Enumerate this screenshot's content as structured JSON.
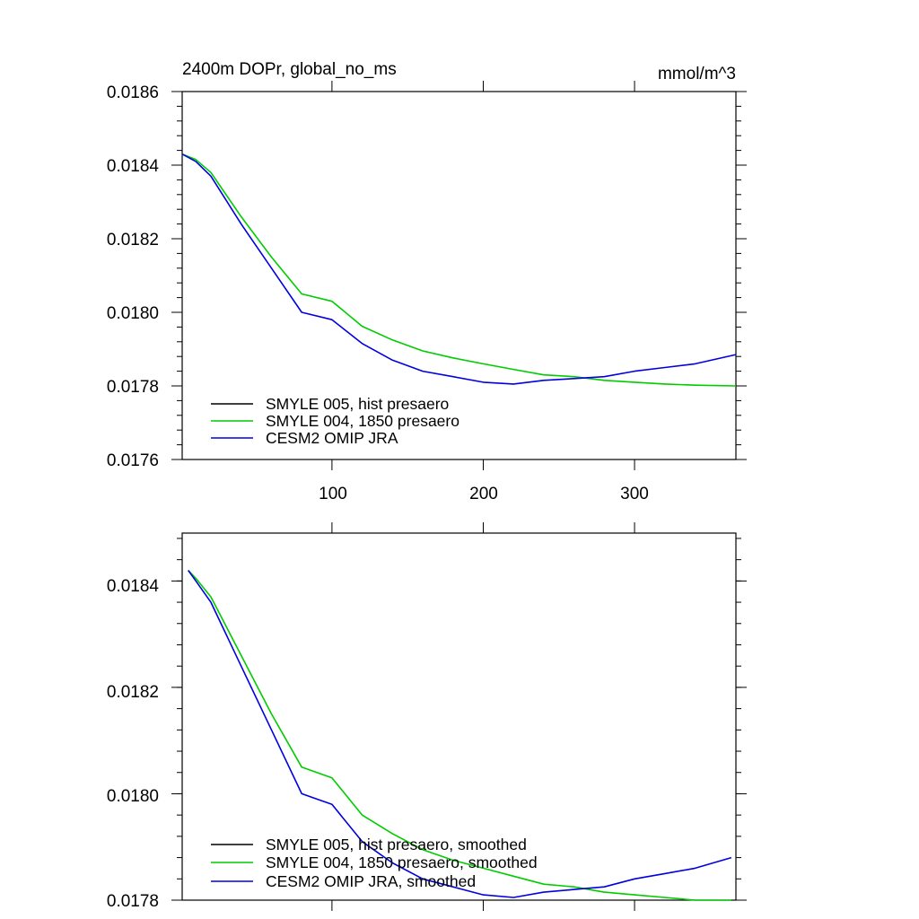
{
  "chart_data": [
    {
      "type": "line",
      "title_left": "2400m DOPr, global_no_ms",
      "title_right": "mmol/m^3",
      "xlabel": "",
      "ylabel": "",
      "xlim": [
        1,
        367
      ],
      "ylim": [
        0.0176,
        0.0186
      ],
      "x_ticks": [
        100,
        200,
        300
      ],
      "y_ticks": [
        0.0176,
        0.0178,
        0.018,
        0.0182,
        0.0184,
        0.0186
      ],
      "y_tick_labels": [
        "0.0176",
        "0.0178",
        "0.0180",
        "0.0182",
        "0.0184",
        "0.0186"
      ],
      "series": [
        {
          "name": "SMYLE 005, hist presaero",
          "color": "#000000",
          "x": [],
          "y": []
        },
        {
          "name": "SMYLE 004, 1850 presaero",
          "color": "#00cc00",
          "x": [
            1,
            10,
            20,
            40,
            60,
            80,
            100,
            120,
            140,
            160,
            180,
            200,
            220,
            240,
            260,
            280,
            300,
            320,
            340,
            367
          ],
          "y": [
            0.01843,
            0.018415,
            0.01838,
            0.01826,
            0.01815,
            0.01805,
            0.01803,
            0.017962,
            0.017925,
            0.017895,
            0.017876,
            0.01786,
            0.017845,
            0.01783,
            0.017825,
            0.017815,
            0.01781,
            0.017805,
            0.017802,
            0.0178
          ]
        },
        {
          "name": "CESM2 OMIP JRA",
          "color": "#0000e0",
          "x": [
            1,
            10,
            20,
            40,
            60,
            80,
            100,
            120,
            140,
            160,
            180,
            200,
            220,
            240,
            260,
            280,
            300,
            320,
            340,
            367
          ],
          "y": [
            0.01843,
            0.01841,
            0.01837,
            0.01824,
            0.01812,
            0.018,
            0.01798,
            0.017915,
            0.01787,
            0.01784,
            0.017825,
            0.01781,
            0.017805,
            0.017815,
            0.01782,
            0.017825,
            0.01784,
            0.01785,
            0.01786,
            0.017885
          ]
        }
      ]
    },
    {
      "type": "line",
      "xlabel": "",
      "ylabel": "",
      "xlim": [
        1,
        367
      ],
      "ylim": [
        0.0178,
        0.01849
      ],
      "x_ticks": [
        100,
        200,
        300
      ],
      "y_ticks": [
        0.0178,
        0.018,
        0.0182,
        0.0184
      ],
      "y_tick_labels": [
        "0.0178",
        "0.0180",
        "0.0182",
        "0.0184"
      ],
      "series": [
        {
          "name": "SMYLE 005, hist presaero, smoothed",
          "color": "#000000",
          "x": [],
          "y": []
        },
        {
          "name": "SMYLE 004, 1850 presaero, smoothed",
          "color": "#00cc00",
          "x": [
            5,
            10,
            20,
            40,
            60,
            80,
            100,
            120,
            140,
            160,
            180,
            200,
            220,
            240,
            260,
            280,
            300,
            320,
            340,
            364
          ],
          "y": [
            0.01842,
            0.018405,
            0.01837,
            0.01826,
            0.01815,
            0.01805,
            0.01803,
            0.01796,
            0.017925,
            0.017895,
            0.017875,
            0.01786,
            0.017845,
            0.01783,
            0.017825,
            0.017815,
            0.01781,
            0.017805,
            0.0178,
            0.0178
          ]
        },
        {
          "name": "CESM2 OMIP JRA, smoothed",
          "color": "#0000e0",
          "x": [
            5,
            10,
            20,
            40,
            60,
            80,
            100,
            120,
            140,
            160,
            180,
            200,
            220,
            240,
            260,
            280,
            300,
            320,
            340,
            364
          ],
          "y": [
            0.01842,
            0.0184,
            0.01836,
            0.01824,
            0.01812,
            0.018,
            0.01798,
            0.01791,
            0.01787,
            0.01784,
            0.017825,
            0.01781,
            0.017805,
            0.017815,
            0.01782,
            0.017825,
            0.01784,
            0.01785,
            0.01786,
            0.01788
          ]
        }
      ]
    }
  ]
}
